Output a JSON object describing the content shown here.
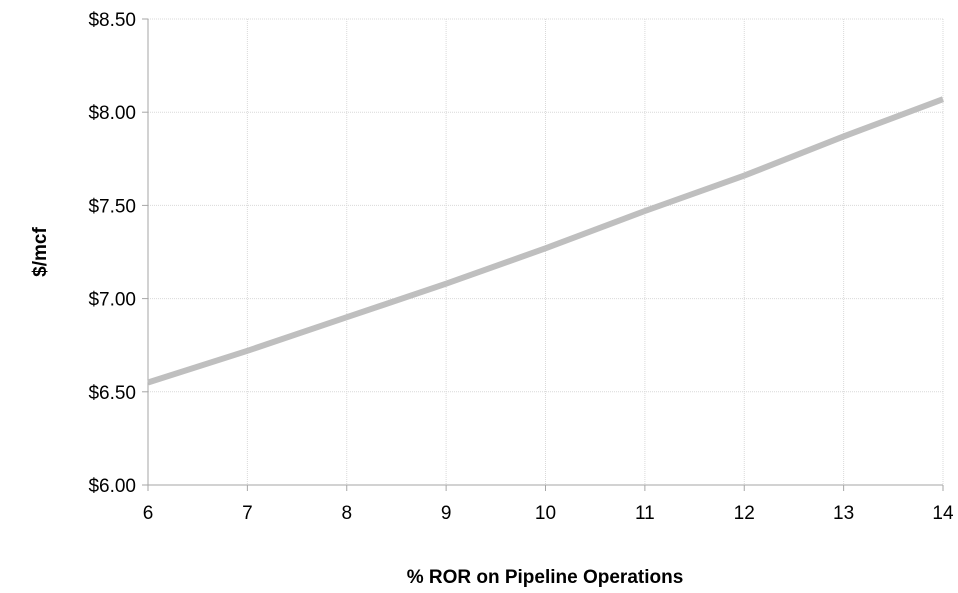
{
  "chart_data": {
    "type": "line",
    "xlabel": "% ROR on Pipeline Operations",
    "ylabel": "$/mcf",
    "xlim": [
      6,
      14
    ],
    "ylim": [
      6.0,
      8.5
    ],
    "x_ticks": [
      6,
      7,
      8,
      9,
      10,
      11,
      12,
      13,
      14
    ],
    "y_ticks": [
      6.0,
      6.5,
      7.0,
      7.5,
      8.0,
      8.5
    ],
    "y_tick_format": "$0.00",
    "grid": true,
    "legend": "none",
    "series": [
      {
        "color": "#bfbfbf",
        "x": [
          6,
          7,
          8,
          9,
          10,
          11,
          12,
          13,
          14
        ],
        "y": [
          6.55,
          6.72,
          6.9,
          7.08,
          7.27,
          7.47,
          7.66,
          7.87,
          8.07
        ]
      }
    ]
  }
}
